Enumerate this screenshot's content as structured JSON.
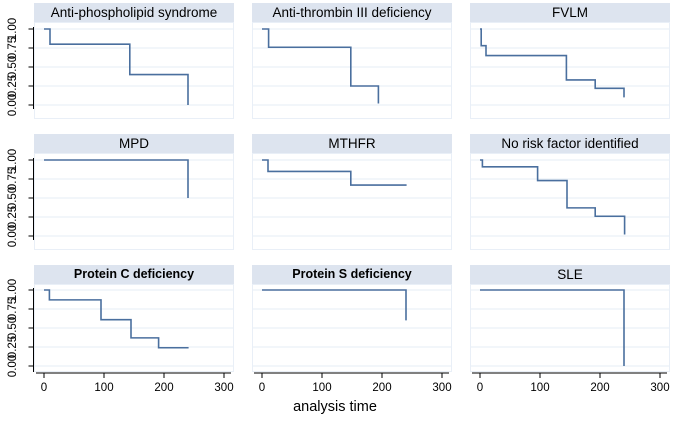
{
  "figure": {
    "xlabel": "analysis time",
    "x_ticks": [
      "0",
      "100",
      "200",
      "300"
    ],
    "y_ticks": [
      "1.00",
      "0.75",
      "0.50",
      "0.25",
      "0.00"
    ],
    "x_range": [
      0,
      300
    ],
    "y_range": [
      0,
      1
    ],
    "grid": true,
    "legend": "none",
    "colors": {
      "line": "#4a6f9e",
      "grid": "#e4edf6",
      "title_bg": "#dde4ef",
      "axis": "#000000",
      "plot_border": "#e9eff7",
      "background": "#ffffff"
    }
  },
  "chart_data": [
    {
      "type": "line",
      "title": "Anti-phospholipid syndrome",
      "steps": [
        [
          0,
          1
        ],
        [
          10,
          1
        ],
        [
          10,
          0.8
        ],
        [
          143,
          0.8
        ],
        [
          143,
          0.4
        ],
        [
          240,
          0.4
        ],
        [
          240,
          0
        ]
      ]
    },
    {
      "type": "line",
      "title": "Anti-thrombin III deficiency",
      "steps": [
        [
          0,
          1
        ],
        [
          11,
          1
        ],
        [
          11,
          0.76
        ],
        [
          148,
          0.76
        ],
        [
          148,
          0.25
        ],
        [
          194,
          0.25
        ],
        [
          194,
          0.02
        ]
      ]
    },
    {
      "type": "line",
      "title": "FVLM",
      "steps": [
        [
          0,
          1
        ],
        [
          2,
          1
        ],
        [
          2,
          0.78
        ],
        [
          10,
          0.78
        ],
        [
          10,
          0.65
        ],
        [
          144,
          0.65
        ],
        [
          144,
          0.33
        ],
        [
          192,
          0.33
        ],
        [
          192,
          0.22
        ],
        [
          240,
          0.22
        ],
        [
          240,
          0.1
        ]
      ]
    },
    {
      "type": "line",
      "title": "MPD",
      "steps": [
        [
          0,
          1
        ],
        [
          240,
          1
        ],
        [
          240,
          0.5
        ]
      ]
    },
    {
      "type": "line",
      "title": "MTHFR",
      "steps": [
        [
          0,
          1
        ],
        [
          10,
          1
        ],
        [
          10,
          0.85
        ],
        [
          148,
          0.85
        ],
        [
          148,
          0.67
        ],
        [
          241,
          0.67
        ]
      ]
    },
    {
      "type": "line",
      "title": "No risk factor identified",
      "steps": [
        [
          0,
          1
        ],
        [
          4,
          1
        ],
        [
          4,
          0.91
        ],
        [
          96,
          0.91
        ],
        [
          96,
          0.73
        ],
        [
          145,
          0.73
        ],
        [
          145,
          0.37
        ],
        [
          192,
          0.37
        ],
        [
          192,
          0.26
        ],
        [
          241,
          0.26
        ],
        [
          241,
          0.02
        ]
      ]
    },
    {
      "type": "line",
      "title": "Protein C deficiency",
      "title_bold": true,
      "steps": [
        [
          0,
          1
        ],
        [
          9,
          1
        ],
        [
          9,
          0.87
        ],
        [
          95,
          0.87
        ],
        [
          95,
          0.61
        ],
        [
          145,
          0.61
        ],
        [
          145,
          0.37
        ],
        [
          191,
          0.37
        ],
        [
          191,
          0.24
        ],
        [
          241,
          0.24
        ]
      ]
    },
    {
      "type": "line",
      "title": "Protein S deficiency",
      "title_bold": true,
      "steps": [
        [
          0,
          1
        ],
        [
          240,
          1
        ],
        [
          240,
          0.6
        ]
      ]
    },
    {
      "type": "line",
      "title": "SLE",
      "steps": [
        [
          0,
          1
        ],
        [
          240,
          1
        ],
        [
          240,
          0
        ]
      ]
    }
  ]
}
